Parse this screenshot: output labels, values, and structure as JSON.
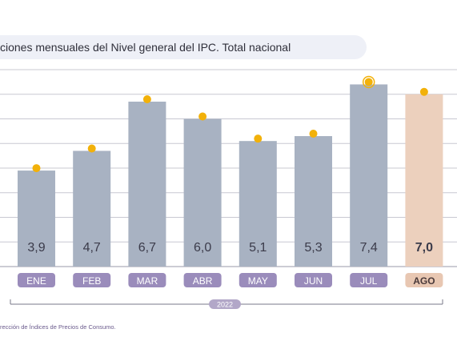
{
  "chart_data": {
    "type": "bar",
    "title": "ciones mensuales del Nivel general del IPC. Total nacional",
    "categories": [
      "ENE",
      "FEB",
      "MAR",
      "ABR",
      "MAY",
      "JUN",
      "JUL",
      "AGO"
    ],
    "values": [
      3.9,
      4.7,
      6.7,
      6.0,
      5.1,
      5.3,
      7.4,
      7.0
    ],
    "value_labels": [
      "3,9",
      "4,7",
      "6,7",
      "6,0",
      "5,1",
      "5,3",
      "7,4",
      "7,0"
    ],
    "dot_values": [
      3.9,
      4.7,
      6.7,
      6.0,
      5.1,
      5.3,
      7.4,
      7.0
    ],
    "highlight_index": 7,
    "year_label": "2022",
    "ylim": [
      0,
      8
    ],
    "gridlines": true,
    "colors": {
      "bar": "#a8b2c2",
      "bar_highlight": "#ecd0bd",
      "dot": "#f2b10a",
      "grid": "#c8c8d2",
      "tab": "#9a8cbb",
      "tab_highlight": "#e8c7b2",
      "year_badge": "#b2a7c8"
    },
    "source": "rección de Índices de Precios de Consumo."
  }
}
